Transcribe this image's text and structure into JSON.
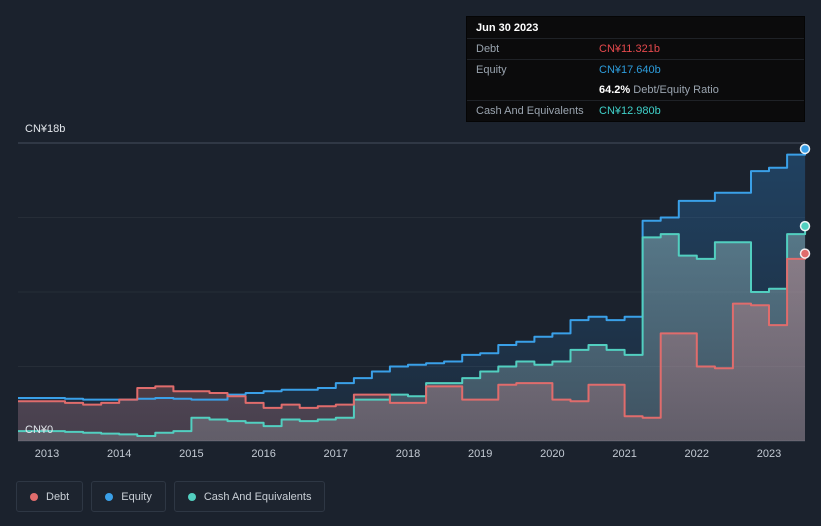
{
  "tooltip": {
    "date": "Jun 30 2023",
    "debt_label": "Debt",
    "debt_value": "CN¥11.321b",
    "debt_color": "#e5494d",
    "equity_label": "Equity",
    "equity_value": "CN¥17.640b",
    "equity_color": "#2d9cdb",
    "ratio_value": "64.2%",
    "ratio_label": " Debt/Equity Ratio",
    "cash_label": "Cash And Equivalents",
    "cash_value": "CN¥12.980b",
    "cash_color": "#3fd0c9"
  },
  "legend": {
    "items": [
      {
        "label": "Debt",
        "color": "#e06c6c"
      },
      {
        "label": "Equity",
        "color": "#3aa0e8"
      },
      {
        "label": "Cash And Equivalents",
        "color": "#52cfc0"
      }
    ]
  },
  "chart_data": {
    "type": "area",
    "title": "Debt, Equity and Cash And Equivalents history (step area chart)",
    "unit": "CN¥ billions",
    "ylim": [
      0,
      18
    ],
    "y_top_label": "CN¥18b",
    "y_bottom_label": "CN¥0",
    "x_label_years": [
      2013,
      2014,
      2015,
      2016,
      2017,
      2018,
      2019,
      2020,
      2021,
      2022,
      2023
    ],
    "x": [
      2013,
      2013.25,
      2013.5,
      2013.75,
      2014,
      2014.25,
      2014.5,
      2014.75,
      2015,
      2015.25,
      2015.5,
      2015.75,
      2016,
      2016.25,
      2016.5,
      2016.75,
      2017,
      2017.25,
      2017.5,
      2017.75,
      2018,
      2018.25,
      2018.5,
      2018.75,
      2019,
      2019.25,
      2019.5,
      2019.75,
      2020,
      2020.25,
      2020.5,
      2020.75,
      2021,
      2021.25,
      2021.5,
      2021.75,
      2022,
      2022.25,
      2022.5,
      2022.75,
      2023,
      2023.25,
      2023.5
    ],
    "series": [
      {
        "name": "Equity",
        "color": "#3aa0e8",
        "fill_top": "rgba(45,140,220,0.30)",
        "fill_bottom": "rgba(45,140,220,0.08)",
        "values": [
          2.6,
          2.55,
          2.5,
          2.5,
          2.5,
          2.55,
          2.6,
          2.55,
          2.5,
          2.5,
          2.8,
          2.9,
          3.0,
          3.1,
          3.1,
          3.2,
          3.5,
          3.8,
          4.2,
          4.5,
          4.6,
          4.7,
          4.8,
          5.2,
          5.3,
          5.8,
          6.0,
          6.3,
          6.5,
          7.3,
          7.5,
          7.3,
          7.5,
          13.3,
          13.5,
          14.5,
          14.5,
          15.0,
          15.0,
          16.3,
          16.5,
          17.3,
          17.64
        ]
      },
      {
        "name": "Cash And Equivalents",
        "color": "#52cfc0",
        "fill_top": "rgba(165,205,205,0.42)",
        "fill_bottom": "rgba(140,170,180,0.30)",
        "values": [
          0.6,
          0.55,
          0.5,
          0.45,
          0.4,
          0.3,
          0.5,
          0.6,
          1.4,
          1.3,
          1.2,
          1.1,
          0.9,
          1.3,
          1.2,
          1.3,
          1.4,
          2.5,
          2.5,
          2.8,
          2.7,
          3.5,
          3.5,
          3.8,
          4.2,
          4.5,
          4.8,
          4.6,
          4.8,
          5.5,
          5.8,
          5.5,
          5.2,
          12.3,
          12.5,
          11.2,
          11.0,
          12.0,
          12.0,
          9.0,
          9.2,
          12.5,
          12.98
        ]
      },
      {
        "name": "Debt",
        "color": "#e06c6c",
        "fill_top": "rgba(235,140,140,0.35)",
        "fill_bottom": "rgba(235,140,140,0.20)",
        "values": [
          2.4,
          2.3,
          2.2,
          2.3,
          2.5,
          3.2,
          3.3,
          3.0,
          3.0,
          2.9,
          2.7,
          2.3,
          2.0,
          2.2,
          2.0,
          2.1,
          2.2,
          2.8,
          2.8,
          2.3,
          2.3,
          3.3,
          3.3,
          2.5,
          2.5,
          3.4,
          3.5,
          3.5,
          2.5,
          2.4,
          3.4,
          3.4,
          1.5,
          1.4,
          6.5,
          6.5,
          4.5,
          4.4,
          8.3,
          8.2,
          7.0,
          11.0,
          11.321
        ]
      }
    ]
  }
}
